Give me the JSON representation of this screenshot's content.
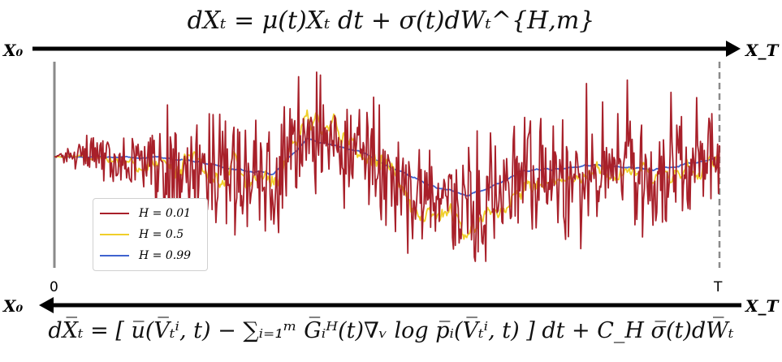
{
  "equations": {
    "forward": "dXₜ = μ(t)Xₜ dt + σ(t)dWₜ^{H,m}",
    "backward": "dX̅ₜ = [ u̅(V̅ₜⁱ, t) − ∑ᵢ₌₁ᵐ G̅ᵢᴴ(t)∇ᵥ log p̅ᵢ(V̅ₜⁱ, t) ] dt + C_H σ̅(t)dW̅ₜ"
  },
  "labels": {
    "x0_top": "X₀",
    "xT_top": "X_T",
    "x0_bottom": "X₀",
    "xT_bottom": "X_T",
    "t0": "0",
    "tT": "T"
  },
  "legend": [
    {
      "label": "H = 0.01",
      "color": "#a8202a"
    },
    {
      "label": "H = 0.5",
      "color": "#f0cf2a"
    },
    {
      "label": "H = 0.99",
      "color": "#3f63cf"
    }
  ],
  "chart_data": {
    "type": "line",
    "series": [
      {
        "name": "H = 0.01",
        "roughness": "very high"
      },
      {
        "name": "H = 0.5",
        "roughness": "medium"
      },
      {
        "name": "H = 0.99",
        "roughness": "smooth"
      }
    ],
    "xlabel": "",
    "ylabel": ""
  }
}
